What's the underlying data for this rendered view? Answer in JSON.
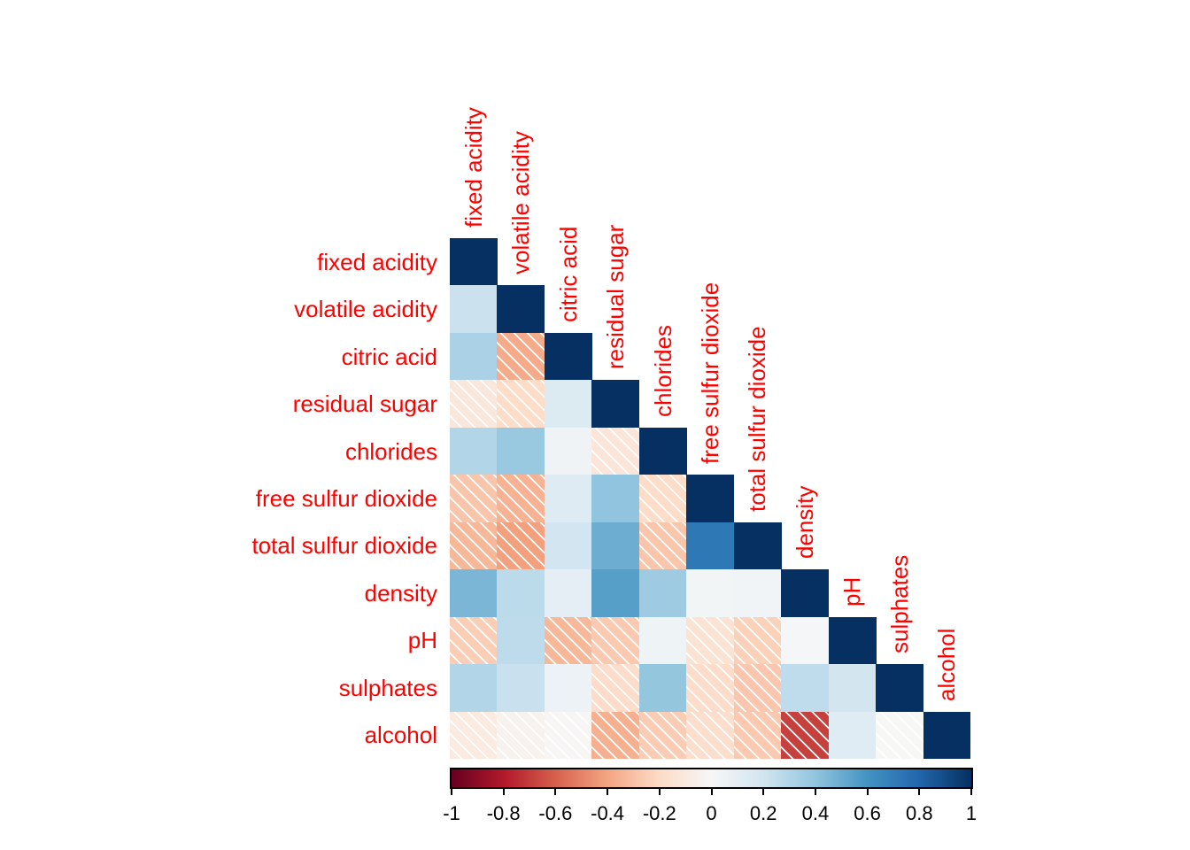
{
  "figure": {
    "background": "#ffffff",
    "label_color": "#ff0000",
    "tick_label_color": "#000000",
    "negative_cells_hatched": true,
    "hatch_color": "#ffffff"
  },
  "chart_data": {
    "type": "heatmap",
    "subtype": "correlation-matrix-lower-triangle",
    "title": "",
    "variables": [
      "fixed acidity",
      "volatile acidity",
      "citric acid",
      "residual sugar",
      "chlorides",
      "free sulfur dioxide",
      "total sulfur dioxide",
      "density",
      "pH",
      "sulphates",
      "alcohol"
    ],
    "matrix_lower_triangle": [
      [
        1.0
      ],
      [
        0.219,
        1.0
      ],
      [
        0.324,
        -0.378,
        1.0
      ],
      [
        -0.112,
        -0.196,
        0.142,
        1.0
      ],
      [
        0.298,
        0.377,
        0.039,
        -0.129,
        1.0
      ],
      [
        -0.283,
        -0.353,
        0.133,
        0.403,
        -0.195,
        1.0
      ],
      [
        -0.329,
        -0.414,
        0.195,
        0.495,
        -0.28,
        0.721,
        1.0
      ],
      [
        0.459,
        0.271,
        0.096,
        0.552,
        0.363,
        0.026,
        0.032,
        1.0
      ],
      [
        -0.252,
        0.261,
        -0.33,
        -0.267,
        0.045,
        -0.146,
        -0.238,
        0.012,
        1.0
      ],
      [
        0.299,
        0.226,
        0.056,
        -0.186,
        0.395,
        -0.188,
        -0.276,
        0.259,
        0.192,
        1.0
      ],
      [
        -0.095,
        -0.038,
        -0.01,
        -0.359,
        -0.257,
        -0.18,
        -0.266,
        -0.687,
        0.121,
        -0.003,
        1.0
      ]
    ],
    "value_range": [
      -1,
      1
    ],
    "palette_rdbu": [
      "#67001F",
      "#B2182B",
      "#D6604D",
      "#F4A582",
      "#FDDBC7",
      "#F7F7F7",
      "#D1E5F0",
      "#92C5DE",
      "#4393C3",
      "#2166AC",
      "#053061"
    ],
    "colorbar": {
      "orientation": "horizontal",
      "position": "bottom",
      "min": -1,
      "max": 1,
      "tick_labels": [
        "-1",
        "-0.8",
        "-0.6",
        "-0.4",
        "-0.2",
        "0",
        "0.2",
        "0.4",
        "0.6",
        "0.8",
        "1"
      ]
    },
    "legend_note": "diagonal cells equal 1; negative correlations drawn with white diagonal shading lines"
  }
}
